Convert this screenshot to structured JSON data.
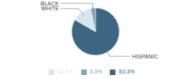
{
  "chart_data": {
    "type": "pie",
    "categories": [
      "HISPANIC",
      "WHITE",
      "BLACK"
    ],
    "values": [
      83.3,
      13.3,
      3.3
    ],
    "value_labels": [
      "83.3%",
      "13.3%",
      "3.3%"
    ],
    "colors": [
      "#3d6683",
      "#d6e4ed",
      "#7ca5b8"
    ],
    "annotations": [
      "HISPANIC"
    ],
    "legend": "bottom"
  }
}
